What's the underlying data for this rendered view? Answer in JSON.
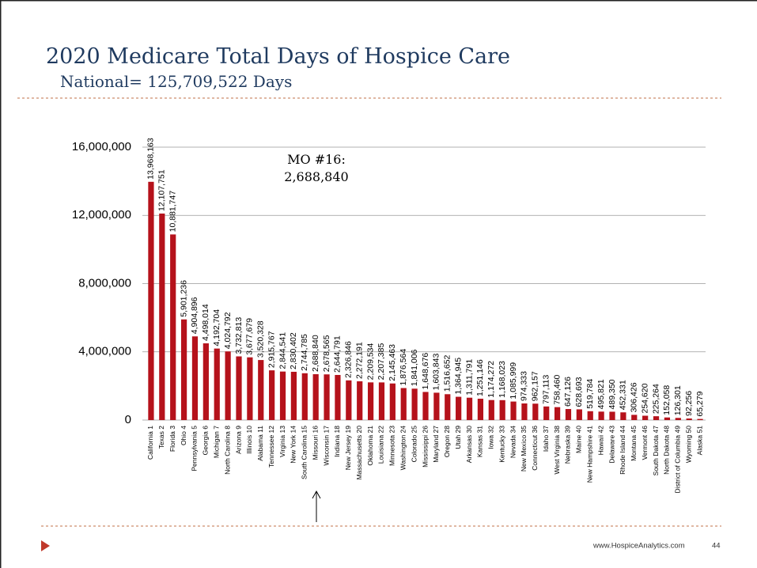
{
  "chart_data": {
    "type": "bar",
    "title": "2020 Medicare Total Days of Hospice Care",
    "subtitle": "National= 125,709,522 Days",
    "annotation": [
      "MO #16:",
      "2,688,840"
    ],
    "categories": [
      "California 1",
      "Texas 2",
      "Florida 3",
      "Ohio 4",
      "Pennsylvania 5",
      "Georgia 6",
      "Michigan 7",
      "North Carolina 8",
      "Arizona 9",
      "Illinois 10",
      "Alabama 11",
      "Tennessee 12",
      "Virginia 13",
      "New York 14",
      "South Carolina 15",
      "Missouri 16",
      "Wisconsin 17",
      "Indiana 18",
      "New Jersey 19",
      "Massachusetts 20",
      "Oklahoma 21",
      "Louisiana 22",
      "Minnesota 23",
      "Washington 24",
      "Colorado 25",
      "Mississippi 26",
      "Maryland 27",
      "Oregon 28",
      "Utah 29",
      "Arkansas 30",
      "Kansas 31",
      "Iowa 32",
      "Kentucky 33",
      "Nevada 34",
      "New Mexico 35",
      "Connecticut 36",
      "Idaho 37",
      "West Virginia 38",
      "Nebraska 39",
      "Maine 40",
      "New Hampshire 41",
      "Hawaii 42",
      "Delaware 43",
      "Rhode Island 44",
      "Montana 45",
      "Vermont 46",
      "South Dakota 47",
      "North Dakota 48",
      "District of Columbia 49",
      "Wyoming 50",
      "Alaska 51"
    ],
    "values": [
      13968163,
      12107751,
      10881747,
      5901236,
      4904896,
      4498014,
      4192704,
      4024792,
      3732813,
      3677679,
      3520328,
      2915767,
      2844541,
      2830402,
      2744785,
      2688840,
      2678565,
      2644791,
      2326846,
      2272191,
      2209534,
      2207385,
      2145463,
      1876564,
      1841006,
      1648676,
      1603843,
      1516652,
      1364945,
      1311791,
      1251146,
      1174272,
      1168023,
      1085999,
      974333,
      962157,
      797113,
      758460,
      647126,
      628693,
      519784,
      495821,
      489350,
      452331,
      306426,
      254620,
      225264,
      152058,
      126301,
      92256,
      65279
    ],
    "value_labels": [
      "13,968,163",
      "12,107,751",
      "10,881,747",
      "5,901,236",
      "4,904,896",
      "4,498,014",
      "4,192,704",
      "4,024,792",
      "3,732,813",
      "3,677,679",
      "3,520,328",
      "2,915,767",
      "2,844,541",
      "2,830,402",
      "2,744,785",
      "2,688,840",
      "2,678,565",
      "2,644,791",
      "2,326,846",
      "2,272,191",
      "2,209,534",
      "2,207,385",
      "2,145,463",
      "1,876,564",
      "1,841,006",
      "1,648,676",
      "1,603,843",
      "1,516,652",
      "1,364,945",
      "1,311,791",
      "1,251,146",
      "1,174,272",
      "1,168,023",
      "1,085,999",
      "974,333",
      "962,157",
      "797,113",
      "758,460",
      "647,126",
      "628,693",
      "519,784",
      "495,821",
      "489,350",
      "452,331",
      "306,426",
      "254,620",
      "225,264",
      "152,058",
      "126,301",
      "92,256",
      "65,279"
    ],
    "color": "#b5121b",
    "ylim": [
      0,
      16000000
    ],
    "yticks": [
      0,
      {
        "value": 4000000,
        "label": "4,000,000"
      },
      {
        "value": 8000000,
        "label": "8,000,000"
      },
      {
        "value": 12000000,
        "label": "12,000,000"
      },
      {
        "value": 16000000,
        "label": "16,000,000"
      }
    ],
    "grid": true
  },
  "footer": {
    "url": "www.HospiceAnalytics.com",
    "page": "44"
  }
}
